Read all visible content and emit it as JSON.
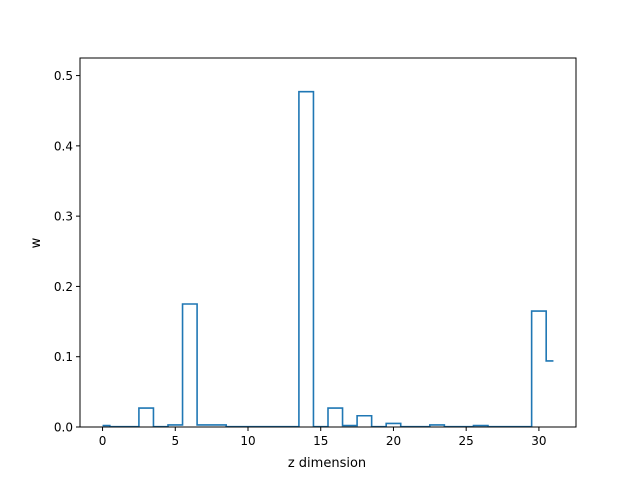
{
  "chart_data": {
    "type": "step",
    "title": "",
    "xlabel": "z dimension",
    "ylabel": "w",
    "xlim": [
      -1.55,
      32.55
    ],
    "ylim": [
      0.0,
      0.525
    ],
    "xticks": [
      0,
      5,
      10,
      15,
      20,
      25,
      30
    ],
    "yticks": [
      0.0,
      0.1,
      0.2,
      0.3,
      0.4,
      0.5
    ],
    "xtick_labels": [
      "0",
      "5",
      "10",
      "15",
      "20",
      "25",
      "30"
    ],
    "ytick_labels": [
      "0.0",
      "0.1",
      "0.2",
      "0.3",
      "0.4",
      "0.5"
    ],
    "step_where": "mid",
    "line_color": "#1f77b4",
    "grid": false,
    "series": [
      {
        "x": [
          0,
          1,
          2,
          3,
          4,
          5,
          6,
          7,
          8,
          9,
          10,
          11,
          12,
          13,
          14,
          15,
          16,
          17,
          18,
          19,
          20,
          21,
          22,
          23,
          24,
          25,
          26,
          27,
          28,
          29,
          30,
          31
        ],
        "values": [
          0.002,
          0.0005,
          0.0005,
          0.027,
          0.0005,
          0.003,
          0.175,
          0.003,
          0.003,
          0.0005,
          0.0005,
          0.0005,
          0.0005,
          0.0005,
          0.477,
          0.0005,
          0.027,
          0.002,
          0.016,
          0.0005,
          0.005,
          0.0005,
          0.0005,
          0.003,
          0.0005,
          0.0005,
          0.002,
          0.0005,
          0.0005,
          0.0005,
          0.165,
          0.094
        ]
      }
    ]
  }
}
